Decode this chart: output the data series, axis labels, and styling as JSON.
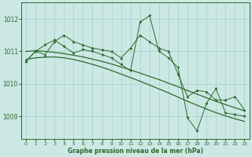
{
  "bg_color": "#cce8e4",
  "grid_color": "#aad4ce",
  "line_color": "#2d6a2d",
  "marker_color": "#2d6a2d",
  "text_color": "#2d6a2d",
  "xlabel": "Graphe pression niveau de la mer (hPa)",
  "ylim": [
    1008.3,
    1012.5
  ],
  "xlim": [
    -0.5,
    23.5
  ],
  "yticks": [
    1009,
    1010,
    1011,
    1012
  ],
  "xticks": [
    0,
    1,
    2,
    3,
    4,
    5,
    6,
    7,
    8,
    9,
    10,
    11,
    12,
    13,
    14,
    15,
    16,
    17,
    18,
    19,
    20,
    21,
    22,
    23
  ],
  "series1": [
    1010.7,
    1011.0,
    1010.9,
    1011.3,
    1011.5,
    1011.3,
    1011.2,
    1011.1,
    1011.05,
    1011.0,
    1010.8,
    1011.1,
    1011.5,
    1011.3,
    1011.1,
    1011.0,
    1010.3,
    1009.6,
    1009.8,
    1009.75,
    1009.5,
    1009.5,
    1009.6,
    1009.2
  ],
  "series2": [
    1010.7,
    1011.0,
    1011.2,
    1011.35,
    1011.15,
    1010.95,
    1011.05,
    1011.0,
    1010.9,
    1010.8,
    1010.6,
    1010.4,
    1011.9,
    1012.1,
    1011.0,
    1010.8,
    1010.5,
    1008.95,
    1008.55,
    1009.4,
    1009.85,
    1009.1,
    1009.05,
    1009.0
  ],
  "smooth1": [
    1011.0,
    1011.02,
    1011.0,
    1010.97,
    1010.93,
    1010.88,
    1010.83,
    1010.76,
    1010.69,
    1010.61,
    1010.52,
    1010.43,
    1010.33,
    1010.23,
    1010.13,
    1010.02,
    1009.91,
    1009.79,
    1009.68,
    1009.57,
    1009.46,
    1009.36,
    1009.26,
    1009.17
  ],
  "smooth2": [
    1010.75,
    1010.8,
    1010.82,
    1010.83,
    1010.8,
    1010.75,
    1010.68,
    1010.6,
    1010.51,
    1010.41,
    1010.3,
    1010.19,
    1010.08,
    1009.96,
    1009.84,
    1009.72,
    1009.59,
    1009.46,
    1009.34,
    1009.22,
    1009.11,
    1009.01,
    1008.92,
    1008.84
  ]
}
